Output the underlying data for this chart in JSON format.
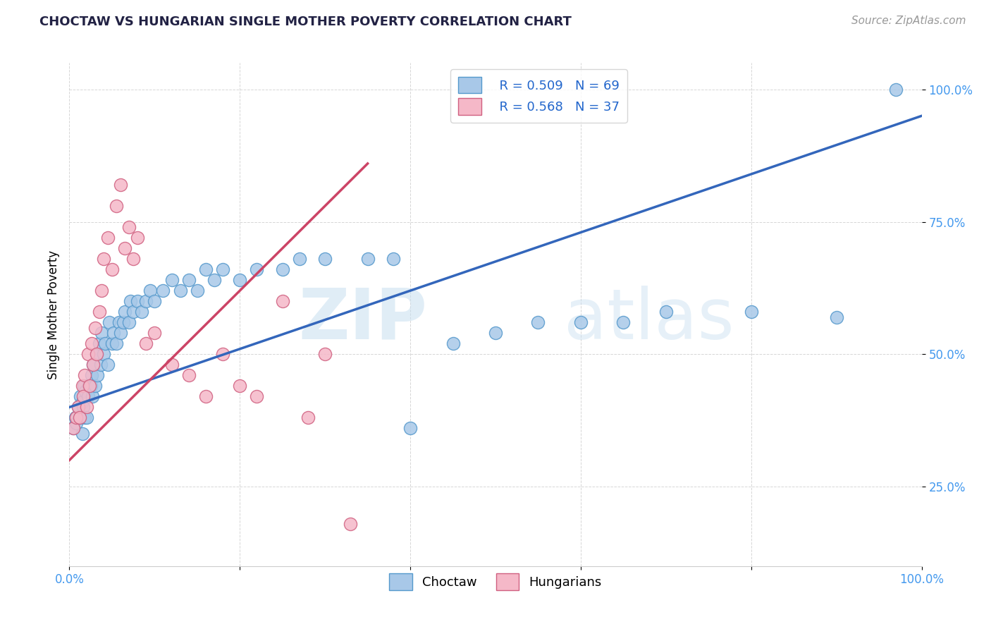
{
  "title": "CHOCTAW VS HUNGARIAN SINGLE MOTHER POVERTY CORRELATION CHART",
  "source": "Source: ZipAtlas.com",
  "ylabel": "Single Mother Poverty",
  "legend_blue_r": "R = 0.509",
  "legend_blue_n": "N = 69",
  "legend_pink_r": "R = 0.568",
  "legend_pink_n": "N = 37",
  "legend_blue_label": "Choctaw",
  "legend_pink_label": "Hungarians",
  "watermark_zip": "ZIP",
  "watermark_atlas": "atlas",
  "blue_color": "#a8c8e8",
  "blue_edge_color": "#5599cc",
  "pink_color": "#f5b8c8",
  "pink_edge_color": "#d06080",
  "blue_line_color": "#3366bb",
  "pink_line_color": "#cc4466",
  "blue_scatter_x": [
    0.005,
    0.007,
    0.008,
    0.01,
    0.012,
    0.013,
    0.015,
    0.015,
    0.016,
    0.017,
    0.018,
    0.019,
    0.02,
    0.022,
    0.023,
    0.025,
    0.026,
    0.027,
    0.028,
    0.03,
    0.032,
    0.033,
    0.035,
    0.037,
    0.038,
    0.04,
    0.042,
    0.045,
    0.047,
    0.05,
    0.052,
    0.055,
    0.058,
    0.06,
    0.063,
    0.065,
    0.07,
    0.072,
    0.075,
    0.08,
    0.085,
    0.09,
    0.095,
    0.1,
    0.11,
    0.12,
    0.13,
    0.14,
    0.15,
    0.16,
    0.17,
    0.18,
    0.2,
    0.22,
    0.25,
    0.27,
    0.3,
    0.35,
    0.38,
    0.4,
    0.45,
    0.5,
    0.55,
    0.6,
    0.65,
    0.7,
    0.8,
    0.9,
    0.97
  ],
  "blue_scatter_y": [
    0.36,
    0.38,
    0.37,
    0.4,
    0.38,
    0.42,
    0.35,
    0.41,
    0.4,
    0.44,
    0.38,
    0.43,
    0.38,
    0.42,
    0.44,
    0.44,
    0.46,
    0.42,
    0.48,
    0.44,
    0.5,
    0.46,
    0.52,
    0.48,
    0.54,
    0.5,
    0.52,
    0.48,
    0.56,
    0.52,
    0.54,
    0.52,
    0.56,
    0.54,
    0.56,
    0.58,
    0.56,
    0.6,
    0.58,
    0.6,
    0.58,
    0.6,
    0.62,
    0.6,
    0.62,
    0.64,
    0.62,
    0.64,
    0.62,
    0.66,
    0.64,
    0.66,
    0.64,
    0.66,
    0.66,
    0.68,
    0.68,
    0.68,
    0.68,
    0.36,
    0.52,
    0.54,
    0.56,
    0.56,
    0.56,
    0.58,
    0.58,
    0.57,
    1.0
  ],
  "pink_scatter_x": [
    0.005,
    0.008,
    0.01,
    0.012,
    0.015,
    0.016,
    0.018,
    0.02,
    0.022,
    0.024,
    0.026,
    0.028,
    0.03,
    0.032,
    0.035,
    0.038,
    0.04,
    0.045,
    0.05,
    0.055,
    0.06,
    0.065,
    0.07,
    0.075,
    0.08,
    0.09,
    0.1,
    0.12,
    0.14,
    0.16,
    0.18,
    0.2,
    0.22,
    0.25,
    0.28,
    0.3,
    0.33
  ],
  "pink_scatter_y": [
    0.36,
    0.38,
    0.4,
    0.38,
    0.44,
    0.42,
    0.46,
    0.4,
    0.5,
    0.44,
    0.52,
    0.48,
    0.55,
    0.5,
    0.58,
    0.62,
    0.68,
    0.72,
    0.66,
    0.78,
    0.82,
    0.7,
    0.74,
    0.68,
    0.72,
    0.52,
    0.54,
    0.48,
    0.46,
    0.42,
    0.5,
    0.44,
    0.42,
    0.6,
    0.38,
    0.5,
    0.18
  ],
  "blue_line_x0": 0.0,
  "blue_line_y0": 0.4,
  "blue_line_x1": 1.0,
  "blue_line_y1": 0.95,
  "pink_line_x0": 0.0,
  "pink_line_y0": 0.3,
  "pink_line_x1": 0.35,
  "pink_line_y1": 0.86,
  "xlim": [
    0.0,
    1.0
  ],
  "ylim": [
    0.1,
    1.05
  ],
  "ytick_values": [
    0.25,
    0.5,
    0.75,
    1.0
  ],
  "ytick_labels": [
    "25.0%",
    "50.0%",
    "75.0%",
    "100.0%"
  ],
  "xtick_labels_left": "0.0%",
  "xtick_labels_right": "100.0%",
  "tick_color": "#4499ee",
  "title_color": "#222244",
  "title_fontsize": 13,
  "source_fontsize": 11,
  "ylabel_fontsize": 12,
  "tick_fontsize": 12,
  "legend_fontsize": 13,
  "marker_size": 170,
  "marker_linewidth": 1.0
}
